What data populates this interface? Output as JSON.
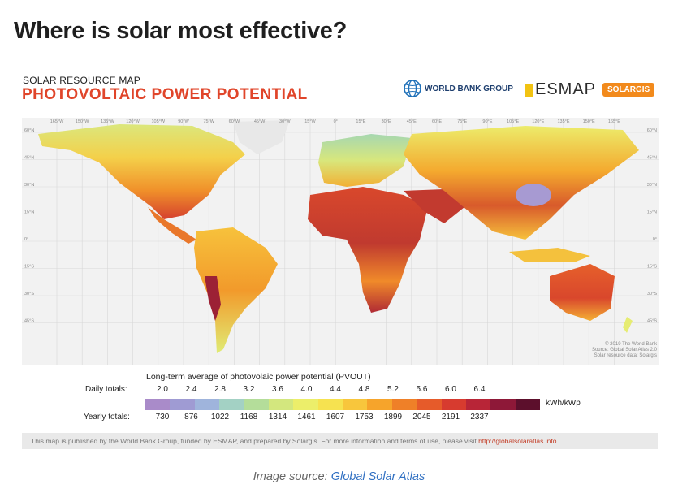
{
  "page": {
    "heading": "Where is solar most effective?"
  },
  "map": {
    "subtitle": "SOLAR RESOURCE MAP",
    "title": "PHOTOVOLTAIC POWER POTENTIAL",
    "logos": {
      "world_bank": "WORLD BANK GROUP",
      "esmap": "ESMAP",
      "solargis": "SOLARGIS"
    },
    "longitudes": [
      "165°W",
      "150°W",
      "135°W",
      "120°W",
      "105°W",
      "90°W",
      "75°W",
      "60°W",
      "45°W",
      "30°W",
      "15°W",
      "0°",
      "15°E",
      "30°E",
      "45°E",
      "60°E",
      "75°E",
      "90°E",
      "105°E",
      "120°E",
      "135°E",
      "150°E",
      "165°E"
    ],
    "latitudes": [
      "60°N",
      "45°N",
      "30°N",
      "15°N",
      "0°",
      "15°S",
      "30°S",
      "45°S"
    ],
    "copyright": [
      "© 2019 The World Bank",
      "Source: Global Solar Atlas 2.0",
      "Solar resource data: Solargis"
    ]
  },
  "legend": {
    "heading": "Long-term average of photovolaic power potential (PVOUT)",
    "daily_label": "Daily totals:",
    "yearly_label": "Yearly totals:",
    "unit": "kWh/kWp",
    "daily": [
      "2.0",
      "2.4",
      "2.8",
      "3.2",
      "3.6",
      "4.0",
      "4.4",
      "4.8",
      "5.2",
      "5.6",
      "6.0",
      "6.4"
    ],
    "yearly": [
      "730",
      "876",
      "1022",
      "1168",
      "1314",
      "1461",
      "1607",
      "1753",
      "1899",
      "2045",
      "2191",
      "2337"
    ],
    "colors": [
      "#a98bc9",
      "#9f9bd3",
      "#9fb4dc",
      "#a3d1c4",
      "#b4dd9a",
      "#d3e77e",
      "#ecee6a",
      "#f6e250",
      "#f8c63c",
      "#f6a42b",
      "#ef8028",
      "#e65b2a",
      "#d73b2f",
      "#b82537",
      "#8e1838",
      "#5c0f2c"
    ]
  },
  "footer": {
    "text": "This map is published by the World Bank Group, funded by ESMAP, and prepared by Solargis. For more information and terms of use, please visit ",
    "link": "http://globalsolaratlas.info",
    "end": "."
  },
  "caption": {
    "prefix": "Image source: ",
    "link": "Global Solar Atlas"
  }
}
